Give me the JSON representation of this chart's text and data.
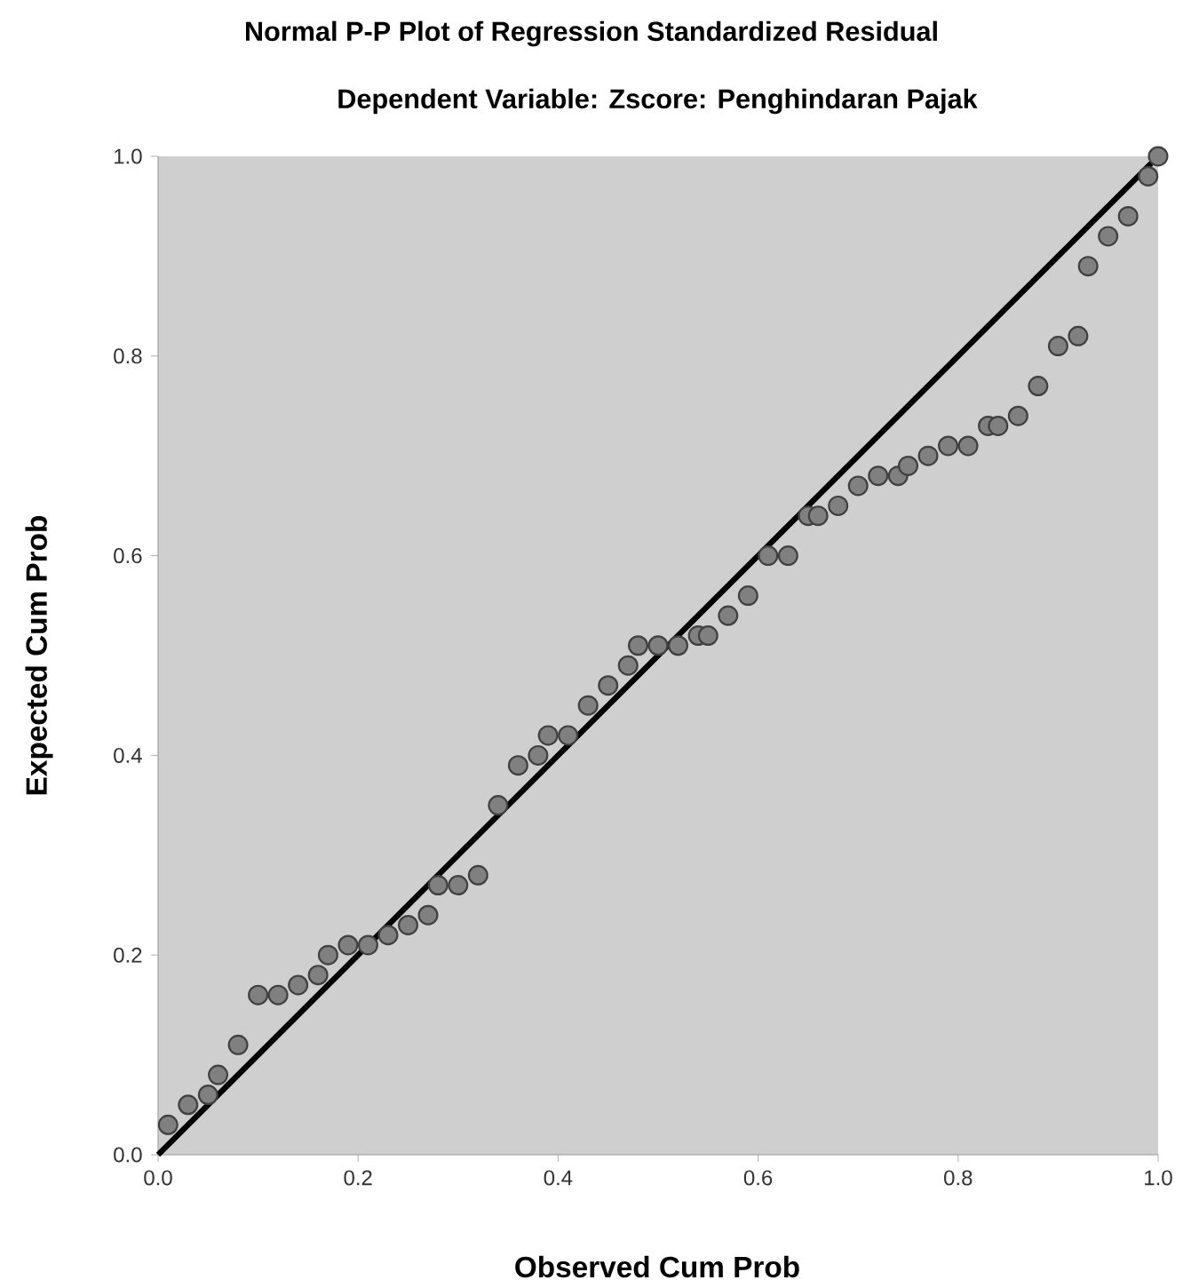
{
  "chart_data": {
    "type": "scatter",
    "title": "Normal P-P Plot of Regression Standardized Residual",
    "subtitle": "Dependent Variable: Zscore:  Penghindaran Pajak",
    "marker": "circle",
    "xlabel": "Observed Cum Prob",
    "ylabel": "Expected Cum Prob",
    "xlim": [
      0,
      1
    ],
    "ylim": [
      0,
      1
    ],
    "xticks": [
      {
        "value": 0,
        "label": "0.0"
      },
      {
        "value": 0.2,
        "label": "0.2"
      },
      {
        "value": 0.4,
        "label": "0.4"
      },
      {
        "value": 0.6,
        "label": "0.6"
      },
      {
        "value": 0.8,
        "label": "0.8"
      },
      {
        "value": 1,
        "label": "1.0"
      }
    ],
    "yticks": [
      {
        "value": 0,
        "label": "0.0"
      },
      {
        "value": 0.2,
        "label": "0.2"
      },
      {
        "value": 0.4,
        "label": "0.4"
      },
      {
        "value": 0.6,
        "label": "0.6"
      },
      {
        "value": 0.8,
        "label": "0.8"
      },
      {
        "value": 1,
        "label": "1.0"
      }
    ],
    "series": [
      {
        "color": "#808080",
        "x": [
          0.01,
          0.03,
          0.05,
          0.06,
          0.08,
          0.1,
          0.12,
          0.14,
          0.16,
          0.17,
          0.19,
          0.21,
          0.23,
          0.25,
          0.27,
          0.28,
          0.3,
          0.32,
          0.34,
          0.36,
          0.38,
          0.39,
          0.41,
          0.43,
          0.45,
          0.47,
          0.48,
          0.5,
          0.52,
          0.54,
          0.55,
          0.57,
          0.59,
          0.61,
          0.63,
          0.65,
          0.66,
          0.68,
          0.7,
          0.72,
          0.74,
          0.75,
          0.77,
          0.79,
          0.81,
          0.83,
          0.84,
          0.86,
          0.88,
          0.9,
          0.92,
          0.93,
          0.95,
          0.97,
          0.99,
          1.0
        ],
        "values": [
          0.03,
          0.05,
          0.06,
          0.08,
          0.11,
          0.16,
          0.16,
          0.17,
          0.18,
          0.2,
          0.21,
          0.21,
          0.22,
          0.23,
          0.24,
          0.27,
          0.27,
          0.28,
          0.35,
          0.39,
          0.4,
          0.42,
          0.42,
          0.45,
          0.47,
          0.49,
          0.51,
          0.51,
          0.51,
          0.52,
          0.52,
          0.54,
          0.56,
          0.6,
          0.6,
          0.64,
          0.64,
          0.65,
          0.67,
          0.68,
          0.68,
          0.69,
          0.7,
          0.71,
          0.71,
          0.73,
          0.73,
          0.74,
          0.77,
          0.81,
          0.82,
          0.89,
          0.92,
          0.94,
          0.98,
          1.0
        ]
      },
      {
        "type": "line",
        "color": "#000000",
        "line_style": "solid",
        "x": [
          0,
          1
        ],
        "values": [
          0,
          1
        ]
      }
    ]
  }
}
